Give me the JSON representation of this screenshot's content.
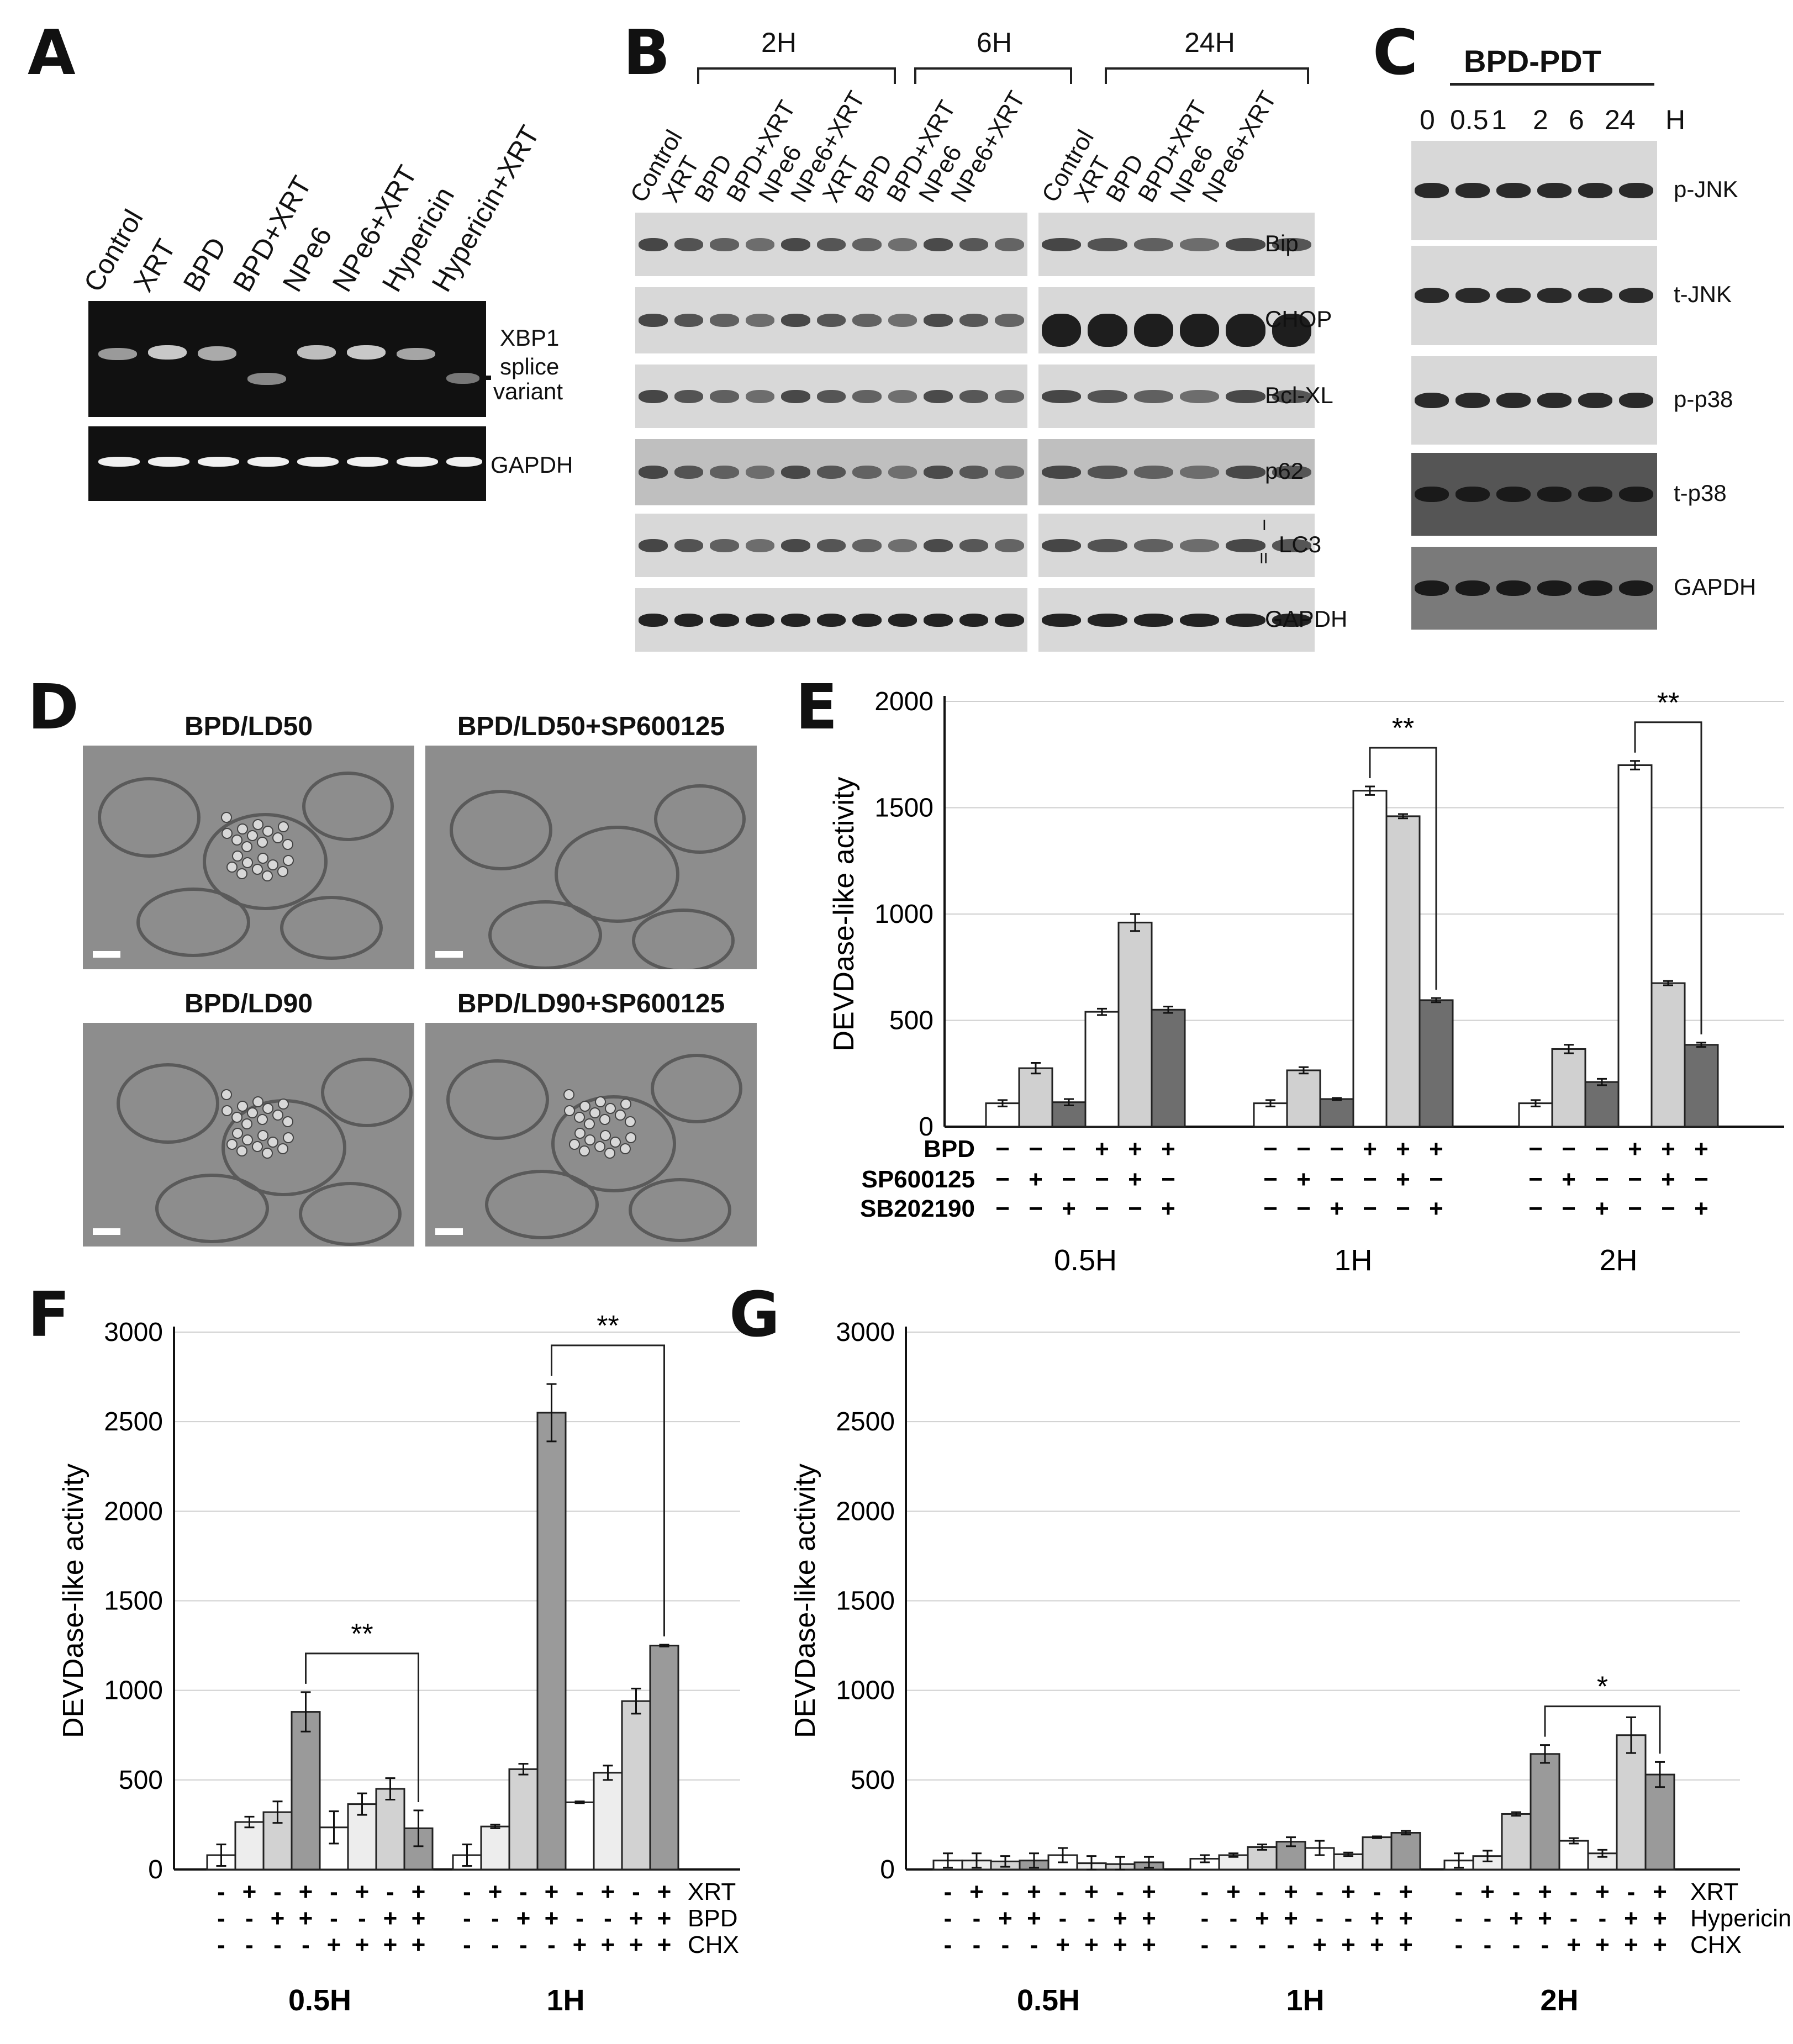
{
  "panels": {
    "a": {
      "letter": "A",
      "lanes": [
        "Control",
        "XRT",
        "BPD",
        "BPD+XRT",
        "NPe6",
        "NPe6+XRT",
        "Hypericin",
        "Hypericin+XRT"
      ],
      "xbp1_line1": "XBP1",
      "xbp1_line2": "splice",
      "xbp1_line3": "variant",
      "gapdh": "GAPDH"
    },
    "b": {
      "letter": "B",
      "time_2h": "2H",
      "time_6h": "6H",
      "time_24h": "24H",
      "lanes_left": [
        "Control",
        "XRT",
        "BPD",
        "BPD+XRT",
        "NPe6",
        "NPe6+XRT",
        "XRT",
        "BPD",
        "BPD+XRT",
        "NPe6",
        "NPe6+XRT"
      ],
      "lanes_right": [
        "Control",
        "XRT",
        "BPD",
        "BPD+XRT",
        "NPe6",
        "NPe6+XRT"
      ],
      "rows": [
        "Bip",
        "CHOP",
        "Bcl-XL",
        "p62",
        "LC3",
        "GAPDH"
      ],
      "lc3_i": "I",
      "lc3_ii": "II"
    },
    "c": {
      "letter": "C",
      "title": "BPD-PDT",
      "times": [
        "0",
        "0.5",
        "1",
        "2",
        "6",
        "24"
      ],
      "unit": "H",
      "rows": [
        "p-JNK",
        "t-JNK",
        "p-p38",
        "t-p38",
        "GAPDH"
      ]
    },
    "d": {
      "letter": "D",
      "titles": [
        "BPD/LD50",
        "BPD/LD50+SP600125",
        "BPD/LD90",
        "BPD/LD90+SP600125"
      ]
    },
    "e": {
      "letter": "E"
    },
    "f": {
      "letter": "F"
    },
    "g": {
      "letter": "G"
    }
  },
  "chart_data": [
    {
      "id": "E",
      "type": "bar",
      "title": "",
      "ylabel": "DEVDase-like activity",
      "ylim": [
        0,
        2000
      ],
      "yticks": [
        0,
        500,
        1000,
        1500,
        2000
      ],
      "groups": [
        "0.5H",
        "1H",
        "2H"
      ],
      "bar_fills": [
        "#ffffff",
        "#d0d0d0",
        "#6e6e6e",
        "#ffffff",
        "#d0d0d0",
        "#6e6e6e"
      ],
      "values": [
        [
          110,
          275,
          115,
          540,
          960,
          550
        ],
        [
          110,
          265,
          130,
          1580,
          1460,
          595
        ],
        [
          110,
          365,
          210,
          1700,
          675,
          385
        ]
      ],
      "errors": [
        [
          15,
          25,
          15,
          15,
          40,
          15
        ],
        [
          15,
          15,
          5,
          20,
          10,
          10
        ],
        [
          15,
          20,
          15,
          20,
          10,
          10
        ]
      ],
      "conditions": [
        {
          "name": "BPD",
          "signs": [
            "−",
            "−",
            "−",
            "+",
            "+",
            "+"
          ]
        },
        {
          "name": "SP600125",
          "signs": [
            "−",
            "+",
            "−",
            "−",
            "+",
            "−"
          ]
        },
        {
          "name": "SB202190",
          "signs": [
            "−",
            "−",
            "+",
            "−",
            "−",
            "+"
          ]
        }
      ],
      "significance": [
        {
          "group": 1,
          "from": 3,
          "to": 5,
          "label": "**"
        },
        {
          "group": 2,
          "from": 3,
          "to": 5,
          "label": "**"
        }
      ]
    },
    {
      "id": "F",
      "type": "bar",
      "title": "",
      "ylabel": "DEVDase-like activity",
      "ylim": [
        0,
        3000
      ],
      "yticks": [
        0,
        500,
        1000,
        1500,
        2000,
        2500,
        3000
      ],
      "groups": [
        "0.5H",
        "1H"
      ],
      "bar_fills": [
        "#ffffff",
        "#ededed",
        "#d2d2d2",
        "#9a9a9a",
        "#ffffff",
        "#ededed",
        "#d2d2d2",
        "#9a9a9a"
      ],
      "values": [
        [
          80,
          265,
          320,
          880,
          235,
          365,
          450,
          230
        ],
        [
          80,
          240,
          560,
          2550,
          375,
          540,
          940,
          1250
        ]
      ],
      "errors": [
        [
          60,
          30,
          60,
          110,
          90,
          60,
          60,
          100
        ],
        [
          60,
          10,
          30,
          160,
          5,
          40,
          70,
          5
        ]
      ],
      "conditions": [
        {
          "name": "XRT",
          "signs": [
            "-",
            "+",
            "-",
            "+",
            "-",
            "+",
            "-",
            "+"
          ]
        },
        {
          "name": "BPD",
          "signs": [
            "-",
            "-",
            "+",
            "+",
            "-",
            "-",
            "+",
            "+"
          ]
        },
        {
          "name": "CHX",
          "signs": [
            "-",
            "-",
            "-",
            "-",
            "+",
            "+",
            "+",
            "+"
          ]
        }
      ],
      "significance": [
        {
          "group": 0,
          "from": 3,
          "to": 7,
          "label": "**"
        },
        {
          "group": 1,
          "from": 3,
          "to": 7,
          "label": "**"
        }
      ]
    },
    {
      "id": "G",
      "type": "bar",
      "title": "",
      "ylabel": "DEVDase-like activity",
      "ylim": [
        0,
        3000
      ],
      "yticks": [
        0,
        500,
        1000,
        1500,
        2000,
        2500,
        3000
      ],
      "groups": [
        "0.5H",
        "1H",
        "2H"
      ],
      "bar_fills": [
        "#ffffff",
        "#ededed",
        "#d2d2d2",
        "#9a9a9a",
        "#ffffff",
        "#ededed",
        "#d2d2d2",
        "#9a9a9a"
      ],
      "values": [
        [
          50,
          50,
          45,
          50,
          80,
          35,
          30,
          40
        ],
        [
          60,
          80,
          125,
          155,
          120,
          85,
          180,
          205
        ],
        [
          50,
          75,
          310,
          645,
          160,
          90,
          750,
          530
        ]
      ],
      "errors": [
        [
          40,
          40,
          30,
          40,
          40,
          40,
          40,
          30
        ],
        [
          20,
          10,
          15,
          25,
          40,
          10,
          5,
          10
        ],
        [
          40,
          30,
          10,
          50,
          15,
          20,
          100,
          70
        ]
      ],
      "conditions": [
        {
          "name": "XRT",
          "signs": [
            "-",
            "+",
            "-",
            "+",
            "-",
            "+",
            "-",
            "+"
          ]
        },
        {
          "name": "Hypericin",
          "signs": [
            "-",
            "-",
            "+",
            "+",
            "-",
            "-",
            "+",
            "+"
          ]
        },
        {
          "name": "CHX",
          "signs": [
            "-",
            "-",
            "-",
            "-",
            "+",
            "+",
            "+",
            "+"
          ]
        }
      ],
      "significance": [
        {
          "group": 2,
          "from": 3,
          "to": 7,
          "label": "*"
        }
      ]
    }
  ]
}
